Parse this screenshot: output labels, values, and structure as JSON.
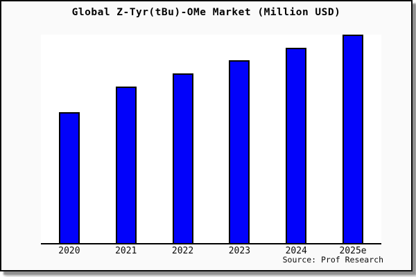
{
  "chart_data": {
    "type": "bar",
    "title": "Global Z-Tyr(tBu)-OMe Market (Million USD)",
    "categories": [
      "2020",
      "2021",
      "2022",
      "2023",
      "2024",
      "2025e"
    ],
    "values": [
      62.7,
      75.0,
      81.3,
      87.7,
      93.7,
      100.0
    ],
    "values_note": "relative index estimated from bar heights; 2025e = 100, no y-axis shown",
    "xlabel": "",
    "ylabel": "",
    "y_axis_visible": false,
    "grid": false,
    "legend": "none",
    "bar_color": "#0202fa",
    "bar_border_color": "#000000",
    "plot_background": "#ffffff",
    "figure_background": "#fafafa"
  },
  "source": {
    "text": "Source: Prof Research"
  }
}
